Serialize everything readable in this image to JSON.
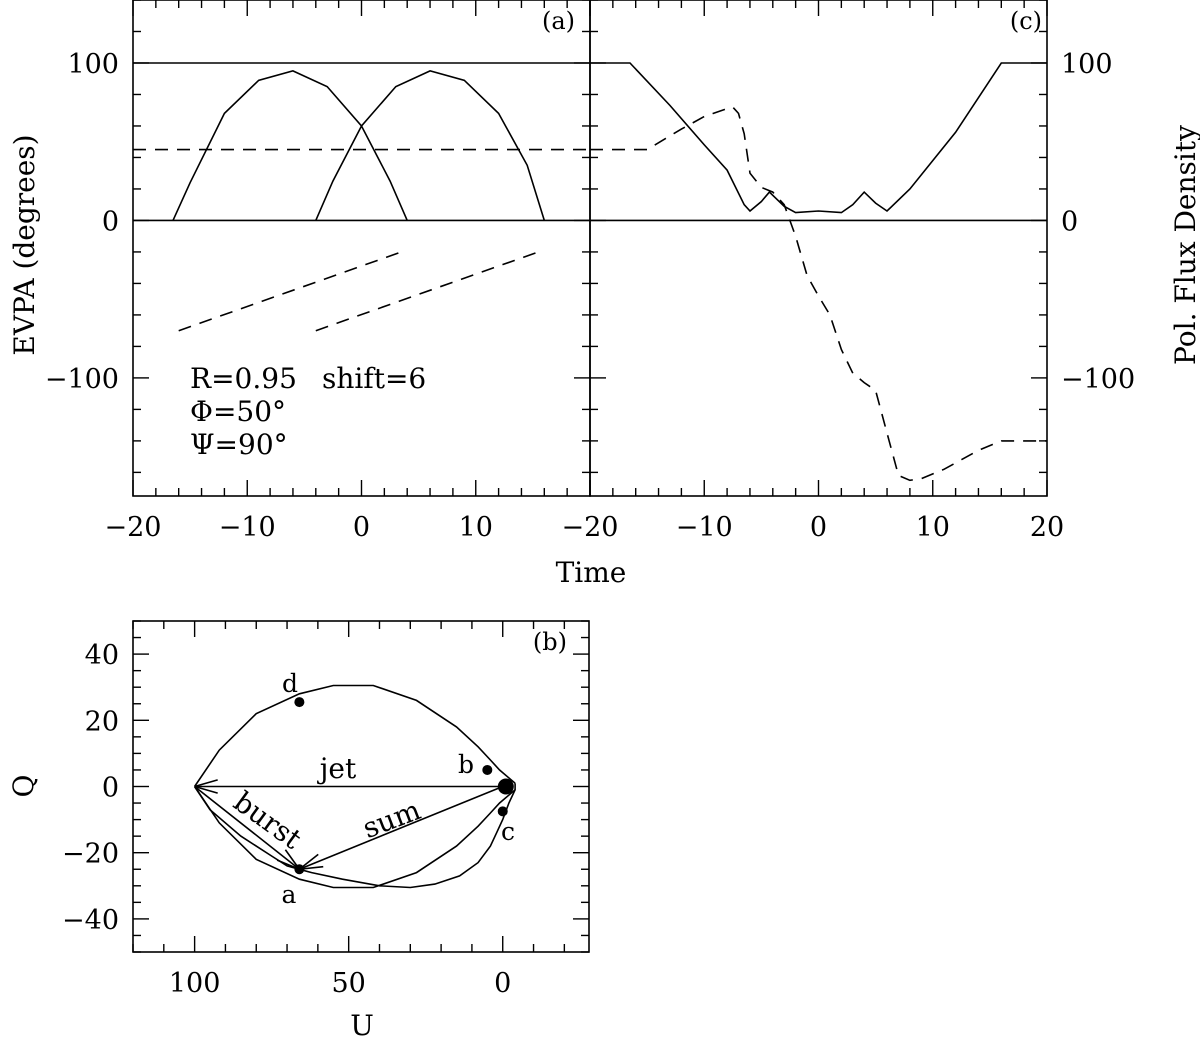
{
  "chart_data": [
    {
      "id": "a",
      "panel_label": "(a)",
      "type": "line",
      "xlabel": "Time",
      "ylabel": "EVPA (degrees)",
      "xlim": [
        -20,
        20
      ],
      "ylim": [
        -175,
        140
      ],
      "xticks": [
        -20,
        -10,
        0,
        10
      ],
      "yticks": [
        -100,
        0,
        100
      ],
      "grid": false,
      "annotations": [
        "R=0.95",
        "shift=6",
        "Φ=50°",
        "Ψ=90°"
      ],
      "series": [
        {
          "style": "solid",
          "x": [
            -20,
            20
          ],
          "y": [
            100,
            100
          ]
        },
        {
          "style": "solid",
          "x": [
            -20,
            20
          ],
          "y": [
            0,
            0
          ]
        },
        {
          "style": "solid",
          "x": [
            -16.5,
            -15,
            -12,
            -9,
            -6,
            -3,
            0,
            2.5,
            4
          ],
          "y": [
            0,
            24,
            68,
            89,
            95,
            85,
            60,
            25,
            0
          ]
        },
        {
          "style": "solid",
          "x": [
            -4,
            -2.5,
            0,
            3,
            6,
            9,
            12,
            14.5,
            16
          ],
          "y": [
            0,
            25,
            60,
            85,
            95,
            89,
            68,
            35,
            0
          ]
        },
        {
          "style": "dashed",
          "x": [
            -20,
            20
          ],
          "y": [
            45,
            45
          ]
        },
        {
          "style": "dashed",
          "x": [
            -16,
            3.5
          ],
          "y": [
            -70,
            -20
          ]
        },
        {
          "style": "dashed",
          "x": [
            -4,
            15.5
          ],
          "y": [
            -70,
            -20
          ]
        }
      ]
    },
    {
      "id": "c",
      "panel_label": "(c)",
      "type": "line",
      "xlabel": "Time",
      "ylabel": "Pol. Flux Density",
      "xlim": [
        -20,
        20
      ],
      "ylim": [
        -175,
        140
      ],
      "xticks": [
        -20,
        -10,
        0,
        10,
        20
      ],
      "yticks": [
        -100,
        0,
        100
      ],
      "grid": false,
      "series": [
        {
          "style": "solid",
          "x": [
            -20,
            20
          ],
          "y": [
            0,
            0
          ]
        },
        {
          "style": "solid",
          "x": [
            -20,
            -16.5,
            -13,
            -10,
            -8,
            -6.5,
            -6,
            -5,
            -4.3,
            -3,
            -2,
            0,
            2,
            3,
            4,
            5,
            6,
            8,
            12,
            16,
            20
          ],
          "y": [
            100,
            100,
            73,
            48,
            32,
            10,
            6,
            12,
            18,
            9,
            5,
            6,
            5,
            10,
            18,
            11,
            6,
            20,
            56,
            100,
            100
          ]
        },
        {
          "style": "dashed",
          "x": [
            -20,
            -15,
            -12,
            -10,
            -8,
            -7.5,
            -7,
            -6.5,
            -6,
            -5,
            -4,
            -3,
            -2,
            -1,
            0,
            1,
            2,
            3,
            4,
            5,
            6,
            7,
            8,
            9,
            11,
            14,
            16,
            20
          ],
          "y": [
            45,
            45,
            58,
            66,
            71,
            72,
            68,
            55,
            30,
            21,
            18,
            10,
            -10,
            -35,
            -48,
            -60,
            -82,
            -97,
            -103,
            -108,
            -135,
            -162,
            -165,
            -164,
            -158,
            -146,
            -140,
            -140
          ]
        }
      ]
    },
    {
      "id": "b",
      "panel_label": "(b)",
      "type": "line",
      "xlabel": "U",
      "ylabel": "Q",
      "xlim": [
        120,
        -28
      ],
      "ylim": [
        -50,
        50
      ],
      "xticks": [
        100,
        50,
        0
      ],
      "yticks": [
        -40,
        -20,
        0,
        20,
        40
      ],
      "grid": false,
      "series": [
        {
          "style": "solid",
          "x": [
            100,
            92,
            80,
            66,
            55,
            42,
            28,
            15,
            8,
            4,
            1,
            -4
          ],
          "y": [
            0,
            11,
            22,
            28,
            30.5,
            30.5,
            26,
            18,
            12,
            8,
            5,
            1
          ]
        },
        {
          "style": "solid",
          "x": [
            100,
            92,
            80,
            66,
            55,
            42,
            28,
            15,
            8,
            4,
            1,
            -4
          ],
          "y": [
            0,
            -11,
            -22,
            -28,
            -30.5,
            -30.5,
            -26,
            -18,
            -12,
            -8,
            -5,
            -1
          ]
        },
        {
          "style": "solid",
          "x": [
            100,
            95,
            85,
            75,
            70,
            66
          ],
          "y": [
            0,
            -7,
            -15,
            -21,
            -24,
            -25
          ]
        },
        {
          "style": "solid",
          "x": [
            -4,
            -4,
            -2,
            0,
            2,
            4,
            8,
            14,
            22,
            30,
            40,
            52,
            62,
            66
          ],
          "y": [
            1,
            -1,
            -5,
            -10,
            -14,
            -18,
            -23,
            -27,
            -29.5,
            -30.5,
            -30,
            -28,
            -26,
            -25
          ]
        }
      ],
      "vectors": [
        {
          "name": "jet",
          "from": [
            0,
            0
          ],
          "to": [
            100,
            0
          ]
        },
        {
          "name": "burst",
          "from": [
            100,
            0
          ],
          "to": [
            66,
            -25
          ]
        },
        {
          "name": "sum",
          "from": [
            0,
            0
          ],
          "to": [
            66,
            -25
          ]
        }
      ],
      "points": [
        {
          "label": "d",
          "u": 66,
          "q": 25.5,
          "size": "small"
        },
        {
          "label": "b",
          "u": 5,
          "q": 5,
          "size": "small"
        },
        {
          "label": "c",
          "u": 0,
          "q": -7.5,
          "size": "small"
        },
        {
          "label": "a",
          "u": 66,
          "q": -25,
          "size": "small"
        },
        {
          "label": "",
          "u": -1,
          "q": 0,
          "size": "large"
        }
      ]
    }
  ]
}
